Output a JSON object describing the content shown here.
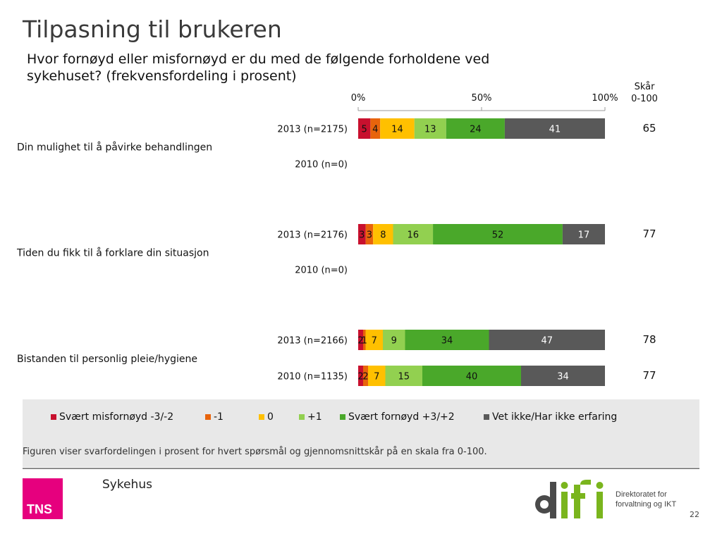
{
  "title": "Tilpasning til brukeren",
  "subtitle": "Hvor fornøyd eller misfornøyd er du med de følgende forholdene ved sykehuset? (frekvensfordeling i prosent)",
  "score_header": [
    "Skår",
    "0-100"
  ],
  "colors": {
    "very_dissatisfied": "#c8102e",
    "minus1": "#e8640c",
    "zero": "#ffc000",
    "plus1": "#92d050",
    "very_satisfied": "#4aa82a",
    "dont_know": "#595959"
  },
  "chart_data": {
    "type": "bar",
    "orientation": "horizontal-stacked-100",
    "xlim": [
      0,
      100
    ],
    "axis_ticks": [
      "0%",
      "50%",
      "100%"
    ],
    "series": [
      {
        "name": "Svært misfornøyd -3/-2",
        "color": "#c8102e"
      },
      {
        "name": "-1",
        "color": "#e8640c"
      },
      {
        "name": "0",
        "color": "#ffc000"
      },
      {
        "name": "+1",
        "color": "#92d050"
      },
      {
        "name": "Svært fornøyd +3/+2",
        "color": "#4aa82a"
      },
      {
        "name": "Vet ikke/Har ikke erfaring",
        "color": "#595959"
      }
    ],
    "groups": [
      {
        "label": "Din mulighet til å påvirke behandlingen",
        "rows": [
          {
            "label": "2013 (n=2175)",
            "values": [
              5,
              4,
              14,
              13,
              24,
              41
            ],
            "score": "65"
          },
          {
            "label": "2010 (n=0)",
            "values": null,
            "score": ""
          }
        ]
      },
      {
        "label": "Tiden du fikk til å forklare din situasjon",
        "rows": [
          {
            "label": "2013 (n=2176)",
            "values": [
              3,
              3,
              8,
              16,
              52,
              17
            ],
            "score": "77"
          },
          {
            "label": "2010 (n=0)",
            "values": null,
            "score": ""
          }
        ]
      },
      {
        "label": "Bistanden til personlig pleie/hygiene",
        "rows": [
          {
            "label": "2013 (n=2166)",
            "values": [
              2,
              1,
              7,
              9,
              34,
              47
            ],
            "score": "78"
          },
          {
            "label": "2010 (n=1135)",
            "values": [
              2,
              2,
              7,
              15,
              40,
              34
            ],
            "score": "77"
          }
        ]
      }
    ]
  },
  "legend": [
    {
      "label": "Svært misfornøyd -3/-2",
      "color": "#c8102e"
    },
    {
      "label": "-1",
      "color": "#e8640c"
    },
    {
      "label": "0",
      "color": "#ffc000"
    },
    {
      "label": "+1",
      "color": "#92d050"
    },
    {
      "label": "Svært fornøyd +3/+2",
      "color": "#4aa82a"
    },
    {
      "label": "Vet ikke/Har ikke erfaring",
      "color": "#595959"
    }
  ],
  "footnote": "Figuren viser svarfordelingen i prosent for hvert spørsmål og gjennomsnittskår på en skala fra 0-100.",
  "footer": {
    "logo_text": "TNS",
    "label": "Sykehus",
    "org_lines": [
      "Direktoratet for",
      "forvaltning og IKT"
    ],
    "difi_logo": "difi",
    "page_number": "22"
  }
}
